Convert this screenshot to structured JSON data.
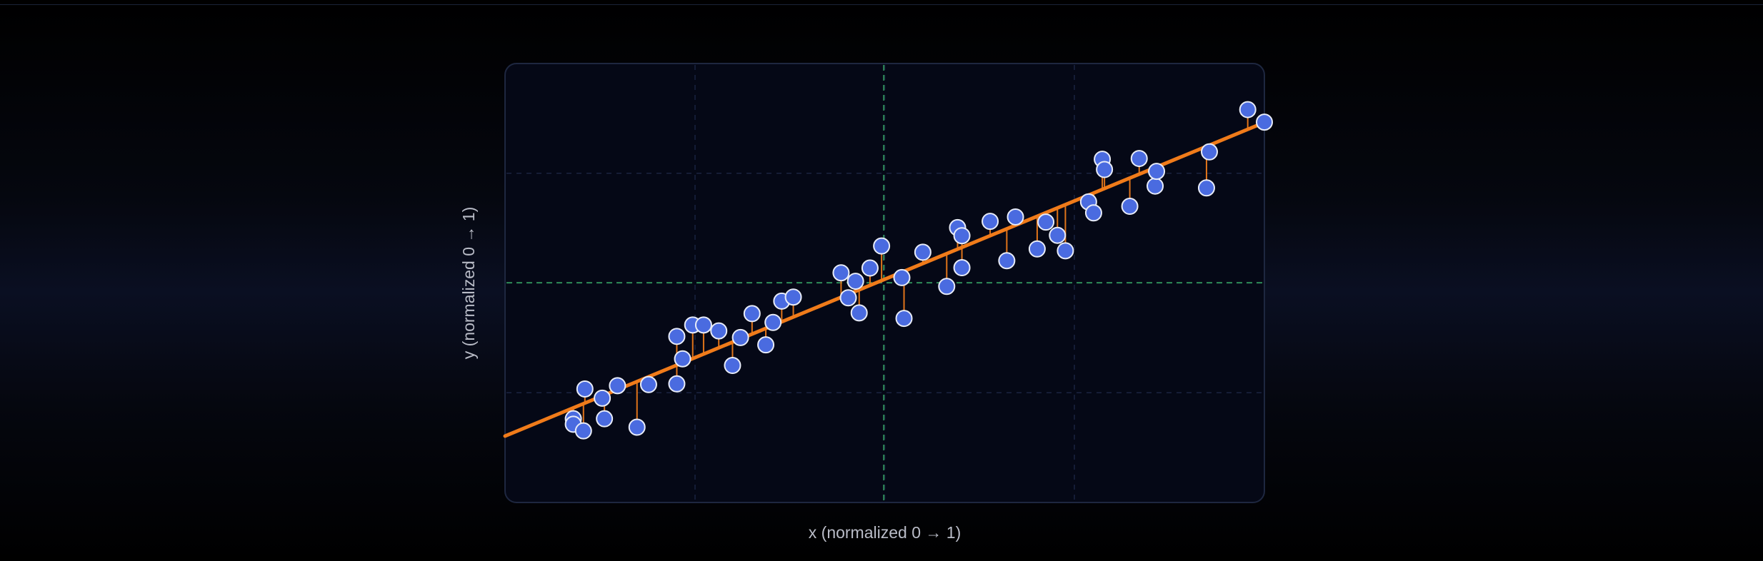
{
  "chart_data": {
    "type": "scatter",
    "title": "",
    "xlabel": "x (normalized 0 → 1)",
    "ylabel": "y (normalized 0 → 1)",
    "xlim": [
      0,
      1
    ],
    "ylim": [
      0,
      1
    ],
    "grid": true,
    "legend": "none",
    "mean": {
      "x": 0.474,
      "y": 0.491
    },
    "fit_line": {
      "x": [
        0,
        1
      ],
      "y": [
        0.114,
        0.927
      ]
    },
    "points": [
      {
        "x": 0.045,
        "y": 0.121
      },
      {
        "x": 0.061,
        "y": 0.202
      },
      {
        "x": 0.045,
        "y": 0.106
      },
      {
        "x": 0.059,
        "y": 0.088
      },
      {
        "x": 0.085,
        "y": 0.177
      },
      {
        "x": 0.088,
        "y": 0.121
      },
      {
        "x": 0.106,
        "y": 0.211
      },
      {
        "x": 0.133,
        "y": 0.098
      },
      {
        "x": 0.149,
        "y": 0.214
      },
      {
        "x": 0.188,
        "y": 0.216
      },
      {
        "x": 0.188,
        "y": 0.345
      },
      {
        "x": 0.196,
        "y": 0.284
      },
      {
        "x": 0.21,
        "y": 0.376
      },
      {
        "x": 0.225,
        "y": 0.376
      },
      {
        "x": 0.246,
        "y": 0.36
      },
      {
        "x": 0.265,
        "y": 0.266
      },
      {
        "x": 0.276,
        "y": 0.342
      },
      {
        "x": 0.292,
        "y": 0.407
      },
      {
        "x": 0.311,
        "y": 0.322
      },
      {
        "x": 0.321,
        "y": 0.383
      },
      {
        "x": 0.333,
        "y": 0.441
      },
      {
        "x": 0.349,
        "y": 0.452
      },
      {
        "x": 0.415,
        "y": 0.518
      },
      {
        "x": 0.425,
        "y": 0.45
      },
      {
        "x": 0.435,
        "y": 0.495
      },
      {
        "x": 0.44,
        "y": 0.409
      },
      {
        "x": 0.455,
        "y": 0.531
      },
      {
        "x": 0.471,
        "y": 0.591
      },
      {
        "x": 0.499,
        "y": 0.505
      },
      {
        "x": 0.502,
        "y": 0.394
      },
      {
        "x": 0.528,
        "y": 0.574
      },
      {
        "x": 0.561,
        "y": 0.481
      },
      {
        "x": 0.576,
        "y": 0.641
      },
      {
        "x": 0.582,
        "y": 0.619
      },
      {
        "x": 0.582,
        "y": 0.532
      },
      {
        "x": 0.621,
        "y": 0.658
      },
      {
        "x": 0.644,
        "y": 0.551
      },
      {
        "x": 0.656,
        "y": 0.67
      },
      {
        "x": 0.686,
        "y": 0.583
      },
      {
        "x": 0.698,
        "y": 0.656
      },
      {
        "x": 0.714,
        "y": 0.62
      },
      {
        "x": 0.725,
        "y": 0.578
      },
      {
        "x": 0.757,
        "y": 0.711
      },
      {
        "x": 0.764,
        "y": 0.681
      },
      {
        "x": 0.776,
        "y": 0.827
      },
      {
        "x": 0.779,
        "y": 0.799
      },
      {
        "x": 0.814,
        "y": 0.699
      },
      {
        "x": 0.827,
        "y": 0.829
      },
      {
        "x": 0.849,
        "y": 0.754
      },
      {
        "x": 0.851,
        "y": 0.794
      },
      {
        "x": 0.92,
        "y": 0.749
      },
      {
        "x": 0.924,
        "y": 0.847
      },
      {
        "x": 0.977,
        "y": 0.962
      },
      {
        "x": 1.0,
        "y": 0.928
      }
    ]
  }
}
